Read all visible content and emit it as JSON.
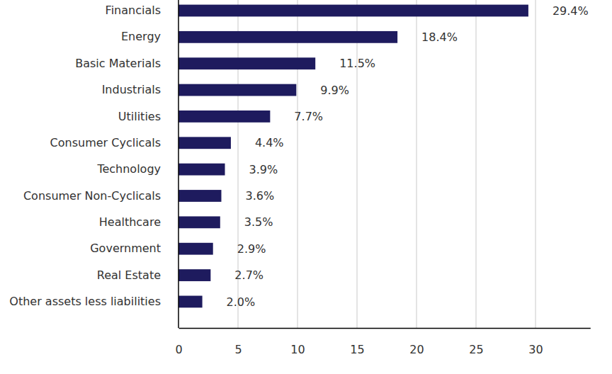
{
  "chart_data": {
    "type": "bar",
    "orientation": "horizontal",
    "categories": [
      "Financials",
      "Energy",
      "Basic Materials",
      "Industrials",
      "Utilities",
      "Consumer Cyclicals",
      "Technology",
      "Consumer Non-Cyclicals",
      "Healthcare",
      "Government",
      "Real Estate",
      "Other assets less liabilities"
    ],
    "values": [
      29.4,
      18.4,
      11.5,
      9.9,
      7.7,
      4.4,
      3.9,
      3.6,
      3.5,
      2.9,
      2.7,
      2.0
    ],
    "value_labels": [
      "29.4%",
      "18.4%",
      "11.5%",
      "9.9%",
      "7.7%",
      "4.4%",
      "3.9%",
      "3.6%",
      "3.5%",
      "2.9%",
      "2.7%",
      "2.0%"
    ],
    "data_labels": true,
    "color": "#1e1b5e",
    "xlim": [
      0,
      34.6
    ],
    "xticks": [
      0,
      5,
      10,
      15,
      20,
      25,
      30
    ],
    "grid": true
  }
}
